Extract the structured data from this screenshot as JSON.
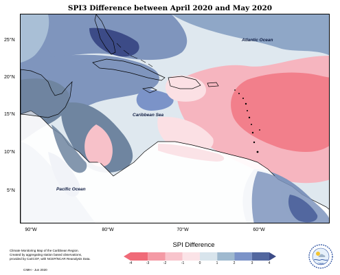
{
  "title": "SPI3 Difference between April 2020 and May 2020",
  "map_labels": {
    "atlantic": "Atlantic Ocean",
    "caribbean": "Caribbean Sea",
    "pacific": "Pacific Ocean"
  },
  "lat_labels": [
    "25°N",
    "20°N",
    "15°N",
    "10°N",
    "5°N"
  ],
  "lon_labels": [
    "90°W",
    "80°W",
    "70°W",
    "60°W"
  ],
  "legend": {
    "title": "SPI Difference",
    "ticks": [
      "-4",
      "-3",
      "-2",
      "-1",
      "0",
      "1",
      "2",
      "3",
      "4"
    ],
    "colors": [
      "#f06a78",
      "#f49aa5",
      "#f8c4cc",
      "#fbe3e7",
      "#d8e4ec",
      "#9fb9cf",
      "#7b93c8",
      "#52679f"
    ]
  },
  "credit_lines": [
    "Climate Monitoring Map of the Caribbean Region.",
    "Created by aggregating station based observations,",
    "provided by CariCOF, with NCEP/NCAR Reanalysis Data."
  ],
  "copyright": "CIMH - Jun 2020",
  "logo_text": "CIMH",
  "colors": {
    "strong_wet": "#3c4b87",
    "wet": "#5a6fa8",
    "moderate_wet": "#7b93c8",
    "slate": "#6f85a0",
    "mild_wet": "#a9bfd6",
    "neutral": "#dfe8ef",
    "mild_dry": "#fbe0e4",
    "dry": "#f6b5bf",
    "strong_dry": "#f27f8b"
  }
}
